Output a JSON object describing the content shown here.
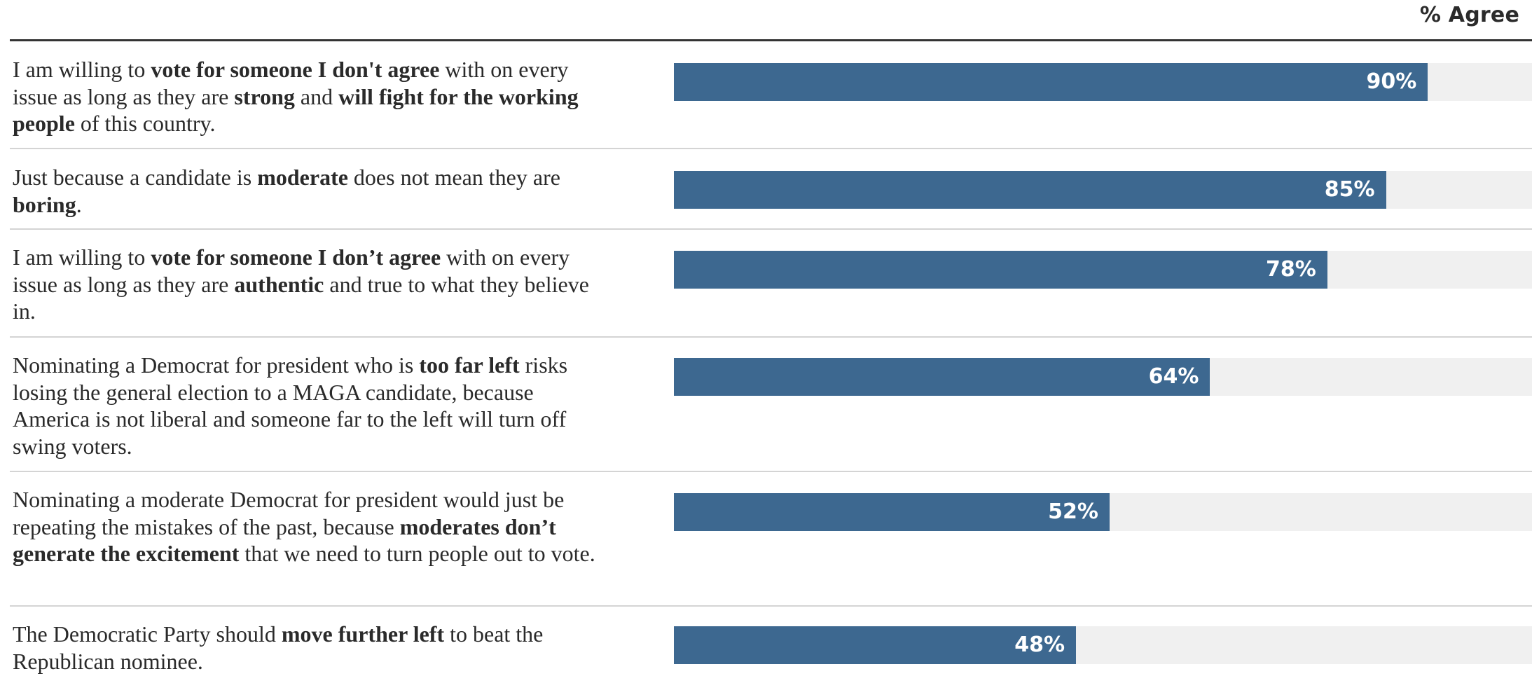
{
  "chart_data": {
    "type": "bar",
    "orientation": "horizontal",
    "header": "% Agree",
    "xlim": [
      0,
      100
    ],
    "grid": false,
    "colors": {
      "bar": "#3d6890",
      "track": "#f0f0f0",
      "label": "#ffffff",
      "divider": "#d4d4d4",
      "rule": "#333333"
    },
    "rows": [
      {
        "segments": [
          {
            "text": "I am willing to ",
            "bold": false
          },
          {
            "text": "vote for someone I don't agree",
            "bold": true
          },
          {
            "text": " with on every issue as long as they are ",
            "bold": false
          },
          {
            "text": "strong",
            "bold": true
          },
          {
            "text": " and ",
            "bold": false
          },
          {
            "text": "will fight for the working people",
            "bold": true
          },
          {
            "text": " of this country.",
            "bold": false
          }
        ],
        "value": 90,
        "label": "90%"
      },
      {
        "segments": [
          {
            "text": "Just because a candidate is ",
            "bold": false
          },
          {
            "text": "moderate",
            "bold": true
          },
          {
            "text": " does not mean they are ",
            "bold": false
          },
          {
            "text": "boring",
            "bold": true
          },
          {
            "text": ".",
            "bold": false
          }
        ],
        "value": 85,
        "label": "85%"
      },
      {
        "segments": [
          {
            "text": "I am willing to ",
            "bold": false
          },
          {
            "text": "vote for someone I don’t agree",
            "bold": true
          },
          {
            "text": " with on every issue as long as they are ",
            "bold": false
          },
          {
            "text": "authentic",
            "bold": true
          },
          {
            "text": " and true to what they believe in.",
            "bold": false
          }
        ],
        "value": 78,
        "label": "78%"
      },
      {
        "segments": [
          {
            "text": "Nominating a Democrat for president who is ",
            "bold": false
          },
          {
            "text": "too far left",
            "bold": true
          },
          {
            "text": " risks losing the general election to a MAGA candidate, because America is not liberal and someone far to the left will turn off swing voters.",
            "bold": false
          }
        ],
        "value": 64,
        "label": "64%"
      },
      {
        "segments": [
          {
            "text": "Nominating a moderate Democrat for president would just be repeating the mistakes of the past, because ",
            "bold": false
          },
          {
            "text": "moderates don’t generate the excitement",
            "bold": true
          },
          {
            "text": " that we need to turn people out to vote.",
            "bold": false
          }
        ],
        "value": 52,
        "label": "52%"
      },
      {
        "segments": [
          {
            "text": "The Democratic Party should ",
            "bold": false
          },
          {
            "text": "move further left",
            "bold": true
          },
          {
            "text": " to beat the Republican nominee.",
            "bold": false
          }
        ],
        "value": 48,
        "label": "48%"
      }
    ]
  }
}
